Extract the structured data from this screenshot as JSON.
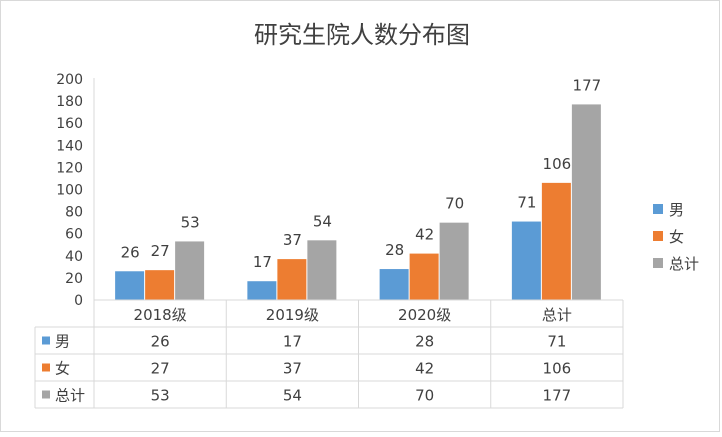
{
  "chart_data": {
    "type": "bar",
    "title": "研究生院人数分布图",
    "categories": [
      "2018级",
      "2019级",
      "2020级",
      "总计"
    ],
    "series": [
      {
        "name": "男",
        "values": [
          26,
          17,
          28,
          71
        ],
        "color": "#5b9bd5"
      },
      {
        "name": "女",
        "values": [
          27,
          37,
          42,
          106
        ],
        "color": "#ed7d31"
      },
      {
        "name": "总计",
        "values": [
          53,
          54,
          70,
          177
        ],
        "color": "#a5a5a5"
      }
    ],
    "ylim": [
      0,
      200
    ],
    "yticks": [
      "0",
      "20",
      "40",
      "60",
      "80",
      "100",
      "120",
      "140",
      "160",
      "180",
      "200"
    ],
    "grid": false,
    "legend": "right",
    "data_table": true,
    "xlabel": "",
    "ylabel": ""
  }
}
